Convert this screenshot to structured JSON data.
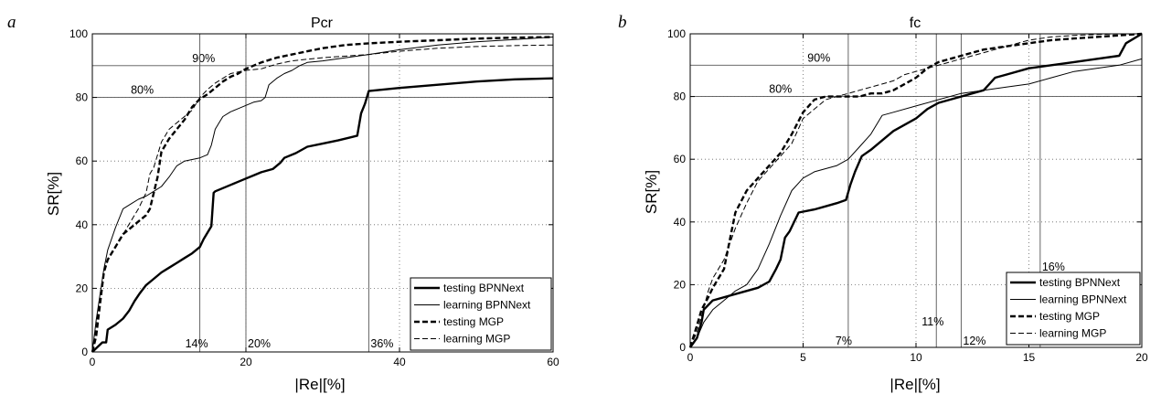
{
  "chart_data": [
    {
      "type": "line",
      "panel": "a",
      "title": "Pcr",
      "xlabel": "|Re|[%]",
      "ylabel": "SR[%]",
      "xlim": [
        0,
        60
      ],
      "ylim": [
        0,
        100
      ],
      "xticks": [
        "0",
        "20",
        "40",
        "60"
      ],
      "yticks": [
        "0",
        "20",
        "40",
        "60",
        "80",
        "100"
      ],
      "grid": "dotted",
      "legend_position": "bottom-right",
      "hlines": [
        {
          "y": 90,
          "label": "90%",
          "label_x": 14.5
        },
        {
          "y": 80,
          "label": "80%",
          "label_x": 6.5
        }
      ],
      "vlines": [
        {
          "x": 14,
          "label": "14%"
        },
        {
          "x": 20,
          "label": "20%"
        },
        {
          "x": 36,
          "label": "36%"
        }
      ],
      "series": [
        {
          "name": "testing BPNNext",
          "style": "thick-solid",
          "x": [
            0,
            1.3,
            1.8,
            2,
            3,
            4,
            4.8,
            5.5,
            6.2,
            7,
            8,
            9,
            10,
            11,
            12,
            13,
            14,
            14.5,
            15.5,
            15.8,
            16,
            17,
            18,
            19,
            20,
            21,
            22,
            23.5,
            24.5,
            25,
            26.5,
            28,
            30,
            32,
            34.5,
            35,
            35.5,
            36,
            40,
            45,
            50,
            55,
            60
          ],
          "y": [
            0,
            3,
            3,
            7,
            8.5,
            10.5,
            13,
            16,
            18.5,
            21,
            23,
            25,
            26.5,
            28,
            29.5,
            31,
            33,
            35.5,
            39.5,
            50,
            50.5,
            51.5,
            52.5,
            53.5,
            54.5,
            55.5,
            56.5,
            57.5,
            59.5,
            61,
            62.5,
            64.5,
            65.5,
            66.5,
            68,
            75,
            78,
            82,
            83,
            84,
            85,
            85.7,
            86
          ]
        },
        {
          "name": "learning BPNNext",
          "style": "thin-solid",
          "x": [
            0,
            0.5,
            1,
            1.5,
            2,
            3,
            4,
            5,
            6,
            7,
            8,
            9,
            10,
            11,
            12,
            13,
            14,
            15,
            15.5,
            16,
            16.5,
            17,
            18,
            19,
            20,
            21,
            22,
            22.5,
            23,
            24,
            25,
            26,
            27,
            28,
            30,
            33,
            36,
            40,
            45,
            50,
            55,
            60
          ],
          "y": [
            0,
            10,
            18,
            26,
            32,
            39,
            45,
            46.5,
            48,
            49,
            50.5,
            52,
            55,
            58.5,
            60,
            60.5,
            61,
            62,
            65,
            70,
            72,
            74,
            75.5,
            76.5,
            77.5,
            78.5,
            79,
            80,
            84,
            86,
            87.5,
            88.5,
            90,
            91,
            91.5,
            92.5,
            93.5,
            95,
            96.5,
            97.5,
            98.2,
            99
          ]
        },
        {
          "name": "testing MGP",
          "style": "thick-dashed",
          "x": [
            0,
            0.5,
            1,
            1.5,
            2,
            3,
            4,
            5,
            6,
            7,
            7.5,
            8,
            8.5,
            9,
            10,
            11,
            12,
            13,
            14,
            15,
            16,
            17,
            18,
            19,
            20,
            22,
            24,
            26,
            28,
            30,
            33,
            36,
            40,
            45,
            50,
            55,
            60
          ],
          "y": [
            0,
            5,
            15,
            25,
            29,
            33,
            37,
            39,
            41,
            43,
            45,
            50,
            55,
            63,
            67,
            70,
            73,
            77,
            79.5,
            81,
            83,
            85,
            86.5,
            87.5,
            89,
            91,
            92.5,
            93.5,
            94.5,
            95.5,
            96.5,
            97,
            97.5,
            98,
            98.5,
            98.8,
            99
          ]
        },
        {
          "name": "learning MGP",
          "style": "thin-dashed",
          "x": [
            0,
            0.5,
            1,
            1.5,
            2,
            3,
            4,
            5,
            6,
            7,
            7.5,
            8,
            9,
            10,
            11,
            12,
            13,
            14,
            15,
            16,
            17,
            18,
            20,
            22,
            24,
            26,
            28,
            30,
            33,
            36,
            40,
            45,
            50,
            55,
            60
          ],
          "y": [
            0,
            8,
            18,
            25,
            29,
            33,
            37,
            41,
            45,
            50,
            56,
            58,
            66,
            70,
            72,
            74,
            76,
            80,
            82.5,
            84.5,
            86,
            87.5,
            88.5,
            89,
            90.5,
            91.5,
            92,
            92.5,
            93,
            93.5,
            94.5,
            95.5,
            96,
            96.3,
            96.5
          ]
        }
      ]
    },
    {
      "type": "line",
      "panel": "b",
      "title": "fc",
      "xlabel": "|Re|[%]",
      "ylabel": "SR[%]",
      "xlim": [
        0,
        20
      ],
      "ylim": [
        0,
        100
      ],
      "xticks": [
        "0",
        "5",
        "10",
        "15",
        "20"
      ],
      "yticks": [
        "0",
        "20",
        "40",
        "60",
        "80",
        "100"
      ],
      "grid": "dotted",
      "legend_position": "bottom-right",
      "hlines": [
        {
          "y": 90,
          "label": "90%",
          "label_x": 5.7
        },
        {
          "y": 80,
          "label": "80%",
          "label_x": 4.0
        }
      ],
      "vlines": [
        {
          "x": 7,
          "label": "7%"
        },
        {
          "x": 10.9,
          "label": "11%"
        },
        {
          "x": 12,
          "label": "12%"
        },
        {
          "x": 15.5,
          "label": "16%"
        }
      ],
      "series": [
        {
          "name": "testing BPNNext",
          "style": "thick-solid",
          "x": [
            0,
            0.3,
            0.5,
            0.6,
            1,
            2,
            3,
            3.5,
            3.8,
            4,
            4.2,
            4.4,
            4.8,
            5.5,
            6,
            6.5,
            6.9,
            7.1,
            7.3,
            7.6,
            8,
            8.5,
            9,
            10,
            10.5,
            11,
            12,
            13,
            13.5,
            14,
            15,
            16,
            17,
            18,
            19,
            19.3,
            20
          ],
          "y": [
            0,
            3,
            8,
            12,
            15,
            17,
            19,
            21,
            25,
            28,
            35,
            37,
            43,
            44,
            45,
            46,
            47,
            52,
            56,
            61,
            63,
            66,
            69,
            73,
            76,
            78,
            80,
            82,
            86,
            87,
            89,
            90,
            91,
            92,
            93,
            97,
            100
          ]
        },
        {
          "name": "learning BPNNext",
          "style": "thin-solid",
          "x": [
            0,
            0.3,
            0.6,
            1,
            1.5,
            2,
            2.5,
            3,
            3.5,
            4,
            4.5,
            5,
            5.5,
            6,
            6.5,
            7,
            7.5,
            8,
            8.5,
            9,
            10,
            11,
            12,
            13,
            14,
            15,
            16,
            17,
            18,
            19,
            20
          ],
          "y": [
            0,
            3,
            8,
            12,
            15,
            18,
            20,
            25,
            33,
            42,
            50,
            54,
            56,
            57,
            58,
            60,
            64,
            68,
            74,
            75,
            77,
            79,
            81,
            82,
            83,
            84,
            86,
            88,
            89,
            90,
            92
          ]
        },
        {
          "name": "testing MGP",
          "style": "thick-dashed",
          "x": [
            0,
            0.3,
            0.5,
            0.8,
            1,
            1.5,
            1.8,
            2,
            2.5,
            3,
            3.5,
            4,
            4.5,
            5,
            5.5,
            6,
            6.5,
            7,
            7.5,
            8,
            8.5,
            9,
            9.5,
            10,
            10.5,
            11,
            12,
            13,
            14,
            15,
            16,
            17,
            18,
            19,
            20
          ],
          "y": [
            0,
            7,
            12,
            16,
            19,
            25,
            36,
            43,
            50,
            54,
            58,
            62,
            68,
            75,
            79,
            80,
            80,
            80,
            80,
            81,
            81,
            82,
            84,
            86,
            89,
            91,
            93,
            95,
            96,
            97,
            98,
            98.5,
            99,
            99.5,
            100
          ]
        },
        {
          "name": "learning MGP",
          "style": "thin-dashed",
          "x": [
            0,
            0.3,
            0.5,
            0.8,
            1,
            1.5,
            2,
            2.5,
            3,
            3.5,
            4,
            4.5,
            5,
            5.5,
            6,
            6.5,
            7,
            7.5,
            8,
            8.5,
            9,
            9.5,
            10,
            10.5,
            11,
            12,
            13,
            14,
            15,
            16,
            17,
            18,
            19,
            20
          ],
          "y": [
            0,
            5,
            10,
            18,
            22,
            28,
            38,
            46,
            53,
            57,
            61,
            65,
            73,
            76,
            79,
            80,
            81,
            82,
            83,
            84,
            85,
            87,
            88,
            89,
            90,
            92,
            94,
            96,
            98,
            99,
            99.5,
            99.8,
            100,
            100
          ]
        }
      ]
    }
  ]
}
